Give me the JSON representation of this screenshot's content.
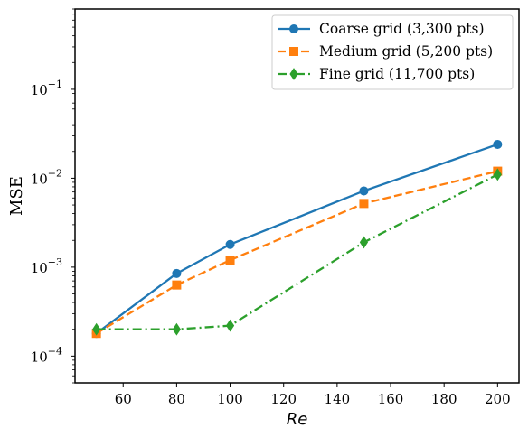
{
  "chart_data": {
    "type": "line",
    "xlabel": "Re",
    "ylabel": "MSE",
    "x": [
      50,
      80,
      100,
      150,
      200
    ],
    "xlim": [
      42,
      208
    ],
    "ylim": [
      5e-05,
      0.8
    ],
    "yscale": "log",
    "xticks": [
      60,
      80,
      100,
      120,
      140,
      160,
      180,
      200
    ],
    "yticks": [
      {
        "value": 0.0001,
        "base": "10",
        "exp": "−4"
      },
      {
        "value": 0.001,
        "base": "10",
        "exp": "−3"
      },
      {
        "value": 0.01,
        "base": "10",
        "exp": "−2"
      },
      {
        "value": 0.1,
        "base": "10",
        "exp": "−1"
      }
    ],
    "grid": false,
    "legend_position": "top-right",
    "series": [
      {
        "name": "Coarse grid (3,300 pts)",
        "values": [
          0.00018,
          0.00085,
          0.0018,
          0.0072,
          0.024
        ],
        "color": "#1f77b4",
        "marker": "circle",
        "linestyle": "solid"
      },
      {
        "name": "Medium grid (5,200 pts)",
        "values": [
          0.00018,
          0.00063,
          0.0012,
          0.0052,
          0.012
        ],
        "color": "#ff7f0e",
        "marker": "square",
        "linestyle": "dashed"
      },
      {
        "name": "Fine grid (11,700 pts)",
        "values": [
          0.0002,
          0.0002,
          0.00022,
          0.0019,
          0.011
        ],
        "color": "#2ca02c",
        "marker": "diamond",
        "linestyle": "dashdot"
      }
    ]
  }
}
